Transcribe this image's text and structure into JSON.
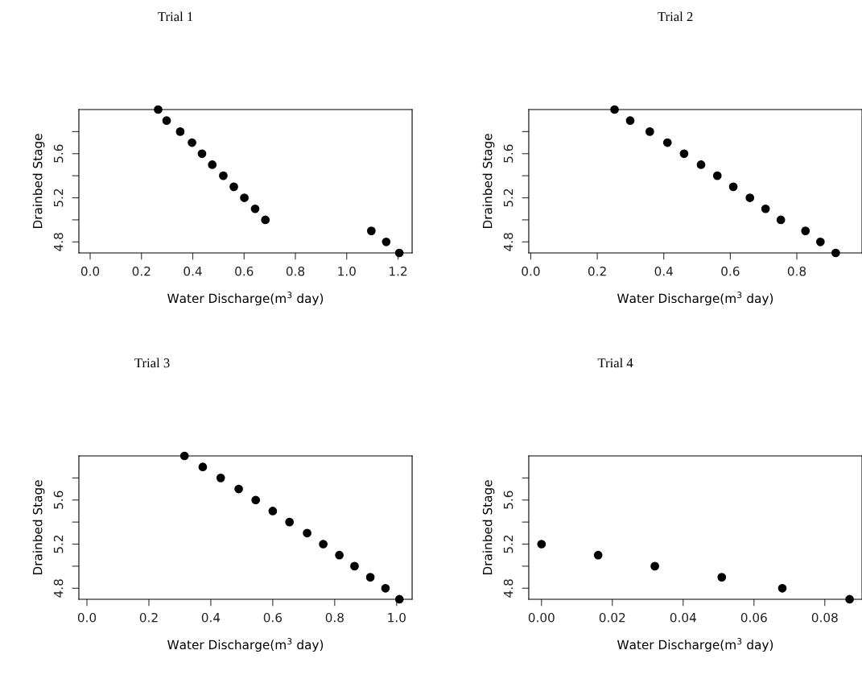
{
  "chart_data": [
    {
      "type": "scatter",
      "title": "Trial 1",
      "xlabel": "Water Discharge(m$^{3}$ day)",
      "ylabel": "Drainbed Stage",
      "marker": "circle",
      "grid": false,
      "xlim": [
        -0.044,
        1.255
      ],
      "ylim": [
        4.7,
        6.0
      ],
      "xticks": [
        {
          "value": 0,
          "label": "0.0"
        },
        {
          "value": 0.2,
          "label": "0.2"
        },
        {
          "value": 0.4,
          "label": "0.4"
        },
        {
          "value": 0.6,
          "label": "0.6"
        },
        {
          "value": 0.8,
          "label": "0.8"
        },
        {
          "value": 1.0,
          "label": "1.0"
        },
        {
          "value": 1.2,
          "label": "1.2"
        }
      ],
      "yticks": [
        4.8,
        {
          "value": 5.0,
          "label": null
        },
        5.2,
        {
          "value": 5.4,
          "label": null
        },
        5.6,
        {
          "value": 5.8,
          "label": null
        }
      ],
      "series": [
        {
          "color": "#000000",
          "x": [
            0.265,
            0.298,
            0.351,
            0.397,
            0.436,
            0.476,
            0.519,
            0.56,
            0.601,
            0.643,
            0.683,
            1.096,
            1.154,
            1.205
          ],
          "values": [
            6.0,
            5.9,
            5.8,
            5.7,
            5.6,
            5.5,
            5.4,
            5.3,
            5.2,
            5.1,
            5.0,
            4.9,
            4.8,
            4.7
          ]
        }
      ]
    },
    {
      "type": "scatter",
      "title": "Trial 2",
      "xlabel": "Water Discharge(m$^{3}$ day)",
      "ylabel": "Drainbed Stage",
      "marker": "circle",
      "grid": false,
      "xlim": [
        -0.006,
        0.996
      ],
      "ylim": [
        4.7,
        6.0
      ],
      "xticks": [
        {
          "value": 0,
          "label": "0.0"
        },
        {
          "value": 0.2,
          "label": "0.2"
        },
        {
          "value": 0.4,
          "label": "0.4"
        },
        {
          "value": 0.6,
          "label": "0.6"
        },
        {
          "value": 0.8,
          "label": "0.8"
        }
      ],
      "yticks": [
        4.8,
        {
          "value": 5.0,
          "label": null
        },
        5.2,
        {
          "value": 5.4,
          "label": null
        },
        5.6,
        {
          "value": 5.8,
          "label": null
        }
      ],
      "series": [
        {
          "color": "#000000",
          "x": [
            0.252,
            0.299,
            0.358,
            0.411,
            0.461,
            0.512,
            0.561,
            0.609,
            0.659,
            0.706,
            0.752,
            0.826,
            0.871,
            0.917
          ],
          "values": [
            6.0,
            5.9,
            5.8,
            5.7,
            5.6,
            5.5,
            5.4,
            5.3,
            5.2,
            5.1,
            5.0,
            4.9,
            4.8,
            4.7
          ]
        }
      ]
    },
    {
      "type": "scatter",
      "title": "Trial 3",
      "xlabel": "Water Discharge(m$^{3}$ day)",
      "ylabel": "Drainbed Stage",
      "marker": "circle",
      "grid": false,
      "xlim": [
        -0.026,
        1.05
      ],
      "ylim": [
        4.7,
        6.0
      ],
      "xticks": [
        {
          "value": 0,
          "label": "0.0"
        },
        {
          "value": 0.2,
          "label": "0.2"
        },
        {
          "value": 0.4,
          "label": "0.4"
        },
        {
          "value": 0.6,
          "label": "0.6"
        },
        {
          "value": 0.8,
          "label": "0.8"
        },
        {
          "value": 1.0,
          "label": "1.0"
        }
      ],
      "yticks": [
        4.8,
        {
          "value": 5.0,
          "label": null
        },
        5.2,
        {
          "value": 5.4,
          "label": null
        },
        5.6,
        {
          "value": 5.8,
          "label": null
        }
      ],
      "series": [
        {
          "color": "#000000",
          "x": [
            0.315,
            0.374,
            0.432,
            0.49,
            0.545,
            0.6,
            0.654,
            0.711,
            0.763,
            0.815,
            0.864,
            0.915,
            0.964,
            1.009
          ],
          "values": [
            6.0,
            5.9,
            5.8,
            5.7,
            5.6,
            5.5,
            5.4,
            5.3,
            5.2,
            5.1,
            5.0,
            4.9,
            4.8,
            4.7
          ]
        }
      ]
    },
    {
      "type": "scatter",
      "title": "Trial 4",
      "xlabel": "Water Discharge(m$^{3}$ day)",
      "ylabel": "Drainbed Stage",
      "marker": "circle",
      "grid": false,
      "xlim": [
        -0.0036,
        0.0905
      ],
      "ylim": [
        4.7,
        6.0
      ],
      "xticks": [
        {
          "value": 0,
          "label": "0.00"
        },
        {
          "value": 0.02,
          "label": "0.02"
        },
        {
          "value": 0.04,
          "label": "0.04"
        },
        {
          "value": 0.06,
          "label": "0.06"
        },
        {
          "value": 0.08,
          "label": "0.08"
        }
      ],
      "yticks": [
        4.8,
        {
          "value": 5.0,
          "label": null
        },
        5.2,
        {
          "value": 5.4,
          "label": null
        },
        5.6,
        {
          "value": 5.8,
          "label": null
        }
      ],
      "series": [
        {
          "color": "#000000",
          "x": [
            0.0,
            0.016,
            0.032,
            0.0509,
            0.068,
            0.087
          ],
          "values": [
            5.2,
            5.1,
            5.0,
            4.9,
            4.8,
            4.7
          ]
        }
      ]
    }
  ]
}
